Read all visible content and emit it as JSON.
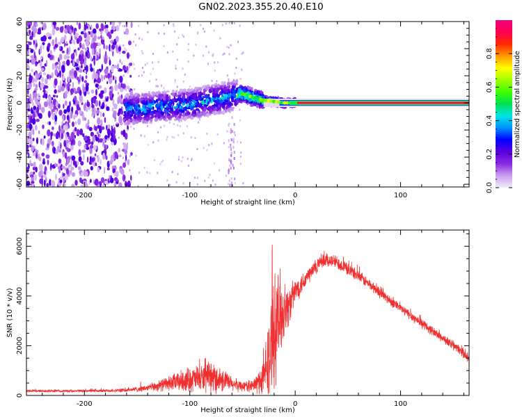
{
  "title": "GN02.2023.355.20.40.E10",
  "chart_data": [
    {
      "type": "heatmap",
      "name": "spectrogram",
      "xlabel": "Height of straight line (km)",
      "ylabel": "Frequency (Hz)",
      "xlim": [
        -255,
        165
      ],
      "ylim": [
        -62,
        60
      ],
      "x_ticks": [
        -200,
        -100,
        0,
        100
      ],
      "y_ticks": [
        -60,
        -40,
        -20,
        0,
        20,
        40,
        60
      ],
      "colorbar": {
        "label": "Normalized spectral amplitude",
        "range": [
          0,
          1
        ],
        "ticks": [
          0.0,
          0.2,
          0.4,
          0.6,
          0.8
        ],
        "colormap": [
          "#f3ecfa",
          "#c9a0ef",
          "#8a2be2",
          "#5a00e0",
          "#0000ff",
          "#0090ff",
          "#00e5e5",
          "#00e050",
          "#40ff00",
          "#a0ff00",
          "#ffff00",
          "#ff9900",
          "#ff2a00",
          "#ff0050",
          "#f0007a"
        ]
      },
      "regions": [
        {
          "x_range": [
            -255,
            -165
          ],
          "freq_range": [
            -62,
            60
          ],
          "amplitude": 0.1,
          "description": "broadband noise"
        },
        {
          "x_range": [
            -160,
            -55
          ],
          "freq_range": [
            -12,
            12
          ],
          "amplitude": 0.25
        },
        {
          "x_range": [
            -50,
            0
          ],
          "freq_range": [
            -2,
            7
          ],
          "amplitude": 0.55
        },
        {
          "x_range": [
            0,
            165
          ],
          "freq_range": [
            -1,
            1
          ],
          "amplitude": 0.95
        }
      ],
      "ridge": {
        "x": [
          -160,
          -130,
          -100,
          -80,
          -60,
          -50,
          -40,
          -30,
          -20,
          -10,
          0,
          165
        ],
        "freq": [
          -5,
          -3,
          -1,
          2,
          5,
          7,
          4,
          2,
          1,
          0,
          0,
          0
        ]
      }
    },
    {
      "type": "line",
      "name": "snr",
      "xlabel": "Height of straight line (km)",
      "ylabel": "SNR (10 * v/v)",
      "xlim": [
        -255,
        165
      ],
      "ylim": [
        0,
        6650
      ],
      "x_ticks": [
        -200,
        -100,
        0,
        100
      ],
      "y_ticks": [
        0,
        2000,
        4000,
        6000
      ],
      "color": "#f03030",
      "series": [
        {
          "x": [
            -255,
            -220,
            -180,
            -160,
            -140,
            -120,
            -100,
            -80,
            -70,
            -60,
            -50,
            -40,
            -30,
            -25,
            -20,
            -15,
            -10,
            -5,
            0,
            10,
            20,
            30,
            40,
            60,
            80,
            100,
            120,
            140,
            160,
            165
          ],
          "y": [
            180,
            180,
            190,
            210,
            300,
            480,
            650,
            700,
            650,
            450,
            380,
            380,
            700,
            1600,
            2600,
            3200,
            3400,
            3700,
            4200,
            4700,
            5200,
            5450,
            5350,
            4800,
            4150,
            3500,
            2900,
            2300,
            1700,
            1450
          ],
          "noise": [
            60,
            60,
            70,
            90,
            160,
            350,
            600,
            700,
            600,
            350,
            250,
            300,
            900,
            2000,
            2600,
            2200,
            1200,
            900,
            600,
            450,
            400,
            350,
            320,
            280,
            260,
            240,
            230,
            220,
            220,
            220
          ]
        }
      ]
    }
  ]
}
